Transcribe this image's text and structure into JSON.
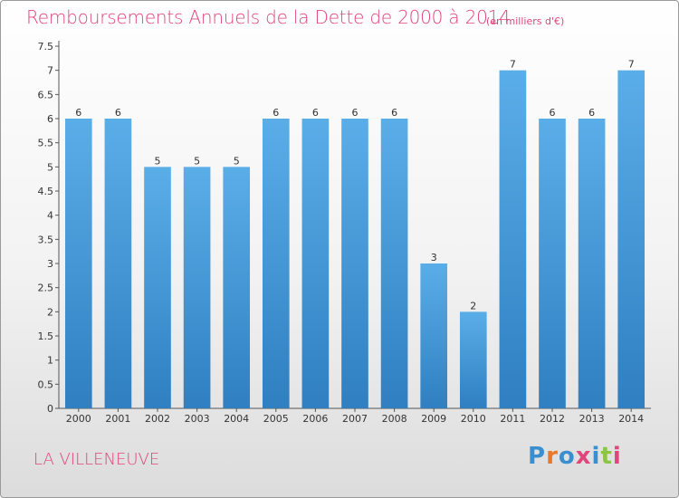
{
  "header": {
    "title": "Remboursements Annuels de la Dette de 2000 à 2014",
    "subtitle": "(en milliers d'€)"
  },
  "footer": {
    "place": "LA VILLENEUVE",
    "logo_text": "Proxiti",
    "logo_colors": [
      "#3a8fd0",
      "#e8792a",
      "#3a8fd0",
      "#e0457b",
      "#3a8fd0",
      "#8cc63e",
      "#e0457b"
    ]
  },
  "chart_data": {
    "type": "bar",
    "title": "Remboursements Annuels de la Dette de 2000 à 2014",
    "subtitle": "(en milliers d'€)",
    "xlabel": "",
    "ylabel": "",
    "categories": [
      "2000",
      "2001",
      "2002",
      "2003",
      "2004",
      "2005",
      "2006",
      "2007",
      "2008",
      "2009",
      "2010",
      "2011",
      "2012",
      "2013",
      "2014"
    ],
    "values": [
      6,
      6,
      5,
      5,
      5,
      6,
      6,
      6,
      6,
      3,
      2,
      7,
      6,
      6,
      7
    ],
    "ylim": [
      0,
      7.5
    ],
    "yticks": [
      "0",
      "0.5",
      "1",
      "1.5",
      "2",
      "2.5",
      "3",
      "3.5",
      "4",
      "4.5",
      "5",
      "5.5",
      "6",
      "6.5",
      "7",
      "7.5"
    ],
    "grid": false,
    "bar_color_top": "#5aaee8",
    "bar_color_bottom": "#2f7fc1",
    "axis_color": "#555555"
  }
}
